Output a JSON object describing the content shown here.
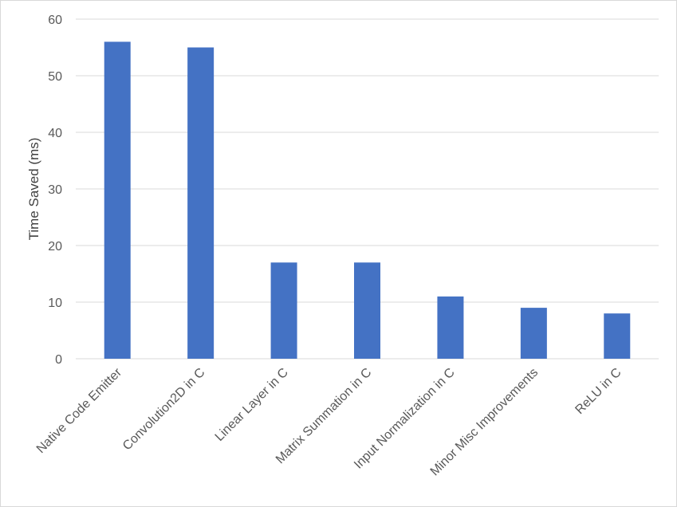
{
  "chart_data": {
    "type": "bar",
    "title": "",
    "xlabel": "",
    "ylabel": "Time Saved (ms)",
    "categories": [
      "Native Code Emitter",
      "Convolution2D in C",
      "Linear Layer in C",
      "Matrix Summation in C",
      "Input Normalization in C",
      "Minor Misc Improvements",
      "ReLU in C"
    ],
    "values": [
      56,
      55,
      17,
      17,
      11,
      9,
      8
    ],
    "ylim": [
      0,
      60
    ],
    "yticks": [
      0,
      10,
      20,
      30,
      40,
      50,
      60
    ],
    "grid": true,
    "legend": "none",
    "bar_color": "#4472C4",
    "grid_color": "#d9d9d9"
  }
}
